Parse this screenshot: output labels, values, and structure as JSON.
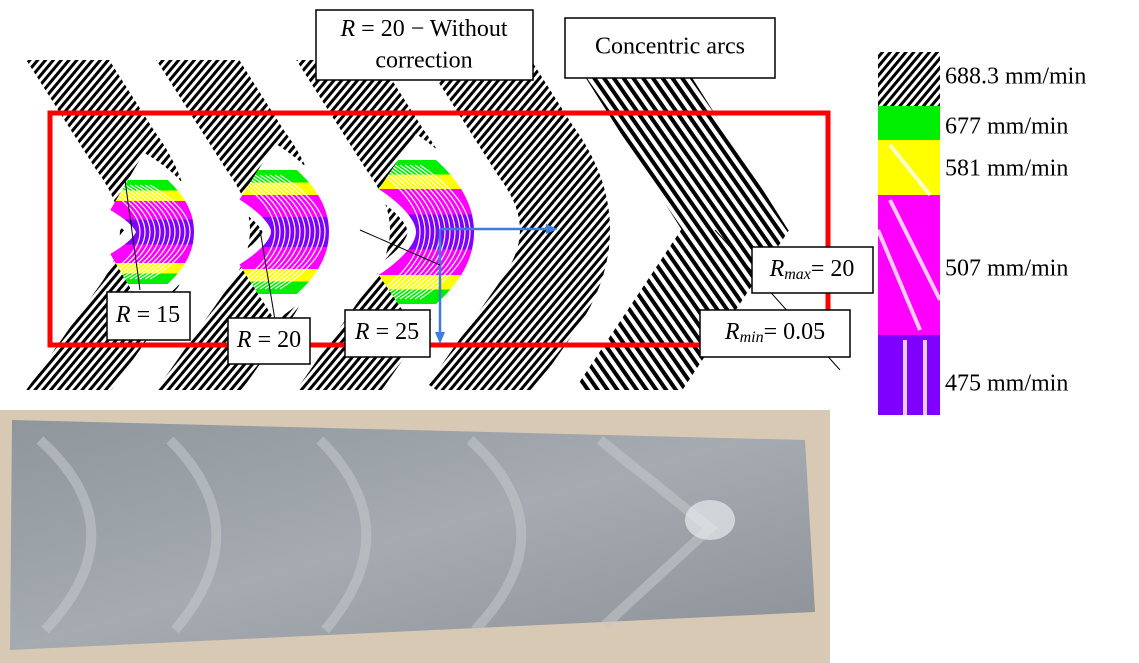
{
  "annotations": {
    "without_correction": {
      "var": "R",
      "text": "= 20 − Without",
      "line2": "correction"
    },
    "concentric": {
      "text": "Concentric arcs"
    },
    "r15": {
      "var": "R",
      "text": "= 15"
    },
    "r20": {
      "var": "R",
      "text": "= 20"
    },
    "r25": {
      "var": "R",
      "text": "= 25"
    },
    "rmax": {
      "var": "R",
      "sub": "max",
      "text": "= 20"
    },
    "rmin": {
      "var": "R",
      "sub": "min",
      "text": "= 0.05"
    }
  },
  "legend": [
    "688.3 mm/min",
    "677 mm/min",
    "581 mm/min",
    "507 mm/min",
    "475 mm/min"
  ]
}
